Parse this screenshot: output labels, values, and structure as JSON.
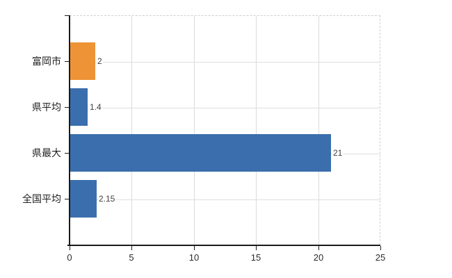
{
  "chart_data": {
    "type": "bar",
    "orientation": "horizontal",
    "title": "",
    "categories": [
      "富岡市",
      "県平均",
      "県最大",
      "全国平均"
    ],
    "values": [
      2,
      1.4,
      21,
      2.15
    ],
    "value_labels": [
      "2",
      "1.4",
      "21",
      "2.15"
    ],
    "bar_colors": [
      "#EE9336",
      "#3A6EAC",
      "#3A6EAC",
      "#3A6EAC"
    ],
    "x_ticks": [
      "0",
      "5",
      "10",
      "15",
      "20",
      "25"
    ],
    "x_tick_values": [
      0,
      5,
      10,
      15,
      20,
      25
    ],
    "xlim": [
      0,
      25
    ],
    "grid": true,
    "legend": false,
    "colors": {
      "bar_default": "#3A6EAC",
      "bar_highlight": "#EE9336",
      "gridline": "#dbdbdb",
      "axis": "#1a1a1a",
      "text": "#2b2b2b"
    }
  }
}
